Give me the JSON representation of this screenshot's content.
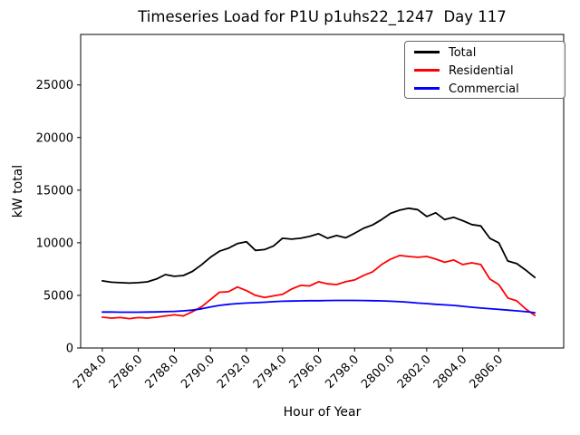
{
  "chart_data": {
    "type": "line",
    "title": "Timeseries Load for P1U p1uhs22_1247  Day 117",
    "xlabel": "Hour of Year",
    "ylabel": "kW total",
    "xlim": [
      2782.8,
      2809.6
    ],
    "ylim": [
      0,
      29800
    ],
    "xticks": [
      2784,
      2786,
      2788,
      2790,
      2792,
      2794,
      2796,
      2798,
      2800,
      2802,
      2804,
      2806
    ],
    "xtick_labels": [
      "2784.0",
      "2786.0",
      "2788.0",
      "2790.0",
      "2792.0",
      "2794.0",
      "2796.0",
      "2798.0",
      "2800.0",
      "2802.0",
      "2804.0",
      "2806.0"
    ],
    "yticks": [
      0,
      5000,
      10000,
      15000,
      20000,
      25000
    ],
    "grid": false,
    "legend_position": "upper right",
    "x": [
      2784,
      2784.5,
      2785,
      2785.5,
      2786,
      2786.5,
      2787,
      2787.5,
      2788,
      2788.5,
      2789,
      2789.5,
      2790,
      2790.5,
      2791,
      2791.5,
      2792,
      2792.5,
      2793,
      2793.5,
      2794,
      2794.5,
      2795,
      2795.5,
      2796,
      2796.5,
      2797,
      2797.5,
      2798,
      2798.5,
      2799,
      2799.5,
      2800,
      2800.5,
      2801,
      2801.5,
      2802,
      2802.5,
      2803,
      2803.5,
      2804,
      2804.5,
      2805,
      2805.5,
      2806,
      2806.5,
      2807,
      2807.5,
      2808
    ],
    "series": [
      {
        "name": "Total",
        "color": "#000000",
        "values": [
          6380,
          6250,
          6210,
          6170,
          6210,
          6290,
          6550,
          6980,
          6810,
          6890,
          7280,
          7900,
          8620,
          9200,
          9480,
          9920,
          10090,
          9280,
          9350,
          9700,
          10430,
          10340,
          10430,
          10600,
          10860,
          10430,
          10690,
          10470,
          10900,
          11380,
          11700,
          12200,
          12800,
          13100,
          13280,
          13150,
          12500,
          12850,
          12200,
          12420,
          12100,
          11730,
          11600,
          10430,
          10000,
          8270,
          8020,
          7400,
          6700
        ]
      },
      {
        "name": "Residential",
        "color": "#ff0000",
        "values": [
          2930,
          2840,
          2890,
          2790,
          2890,
          2840,
          2930,
          3050,
          3150,
          3050,
          3450,
          3900,
          4600,
          5300,
          5350,
          5800,
          5450,
          5000,
          4800,
          4950,
          5100,
          5600,
          5950,
          5900,
          6300,
          6100,
          6030,
          6300,
          6470,
          6900,
          7240,
          7930,
          8450,
          8790,
          8700,
          8620,
          8700,
          8450,
          8150,
          8360,
          7930,
          8100,
          7930,
          6550,
          6030,
          4750,
          4480,
          3700,
          3100
        ]
      },
      {
        "name": "Commercial",
        "color": "#0000ff",
        "values": [
          3420,
          3420,
          3400,
          3400,
          3400,
          3420,
          3430,
          3450,
          3480,
          3530,
          3600,
          3720,
          3900,
          4050,
          4150,
          4220,
          4270,
          4310,
          4350,
          4400,
          4440,
          4460,
          4480,
          4500,
          4500,
          4510,
          4520,
          4520,
          4520,
          4510,
          4500,
          4480,
          4440,
          4400,
          4350,
          4270,
          4220,
          4150,
          4100,
          4050,
          3960,
          3880,
          3800,
          3740,
          3670,
          3600,
          3530,
          3450,
          3360
        ]
      }
    ]
  }
}
